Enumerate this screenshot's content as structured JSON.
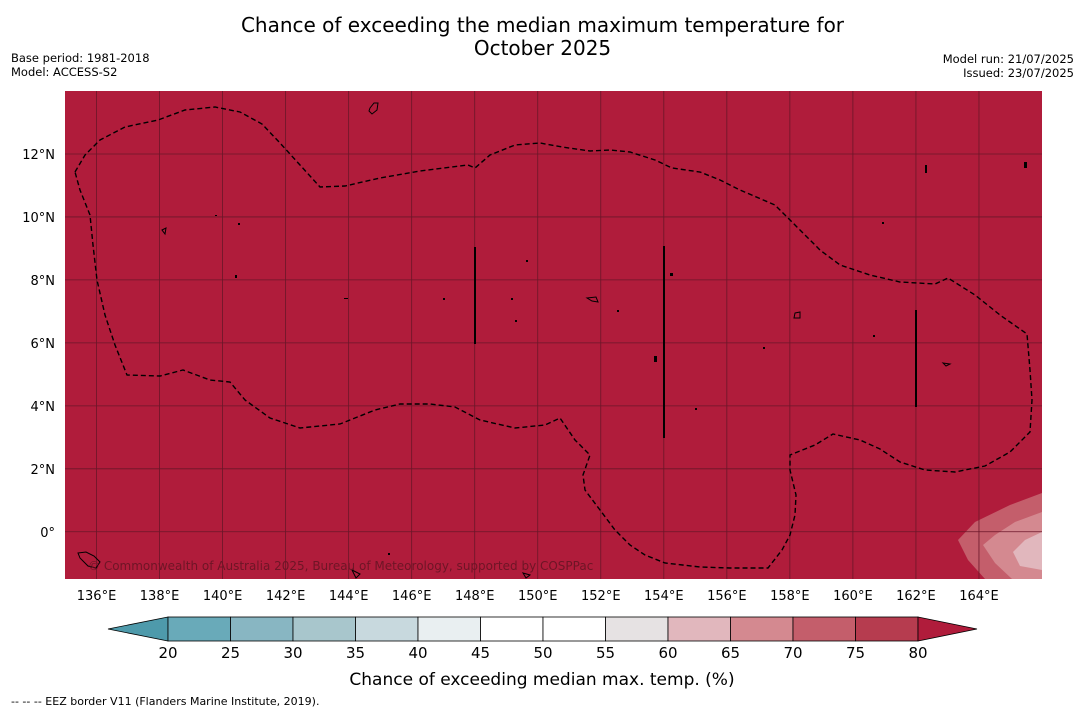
{
  "title_line1": "Chance of exceeding the median maximum temperature for",
  "title_line2": "October 2025",
  "meta_left": {
    "base_period": "Base period: 1981-2018",
    "model": "Model: ACCESS-S2"
  },
  "meta_right": {
    "model_run": "Model run: 21/07/2025",
    "issued": "Issued: 23/07/2025"
  },
  "map": {
    "lon_range": [
      135.0,
      166.0
    ],
    "lat_range": [
      -1.5,
      14.0
    ],
    "lon_ticks": [
      "136°E",
      "138°E",
      "140°E",
      "142°E",
      "144°E",
      "146°E",
      "148°E",
      "150°E",
      "152°E",
      "154°E",
      "156°E",
      "158°E",
      "160°E",
      "162°E",
      "164°E"
    ],
    "lat_ticks": [
      "12°N",
      "10°N",
      "8°N",
      "6°N",
      "4°N",
      "2°N",
      "0°"
    ],
    "dominant_category": "80",
    "copyright": "© Commonwealth of Australia 2025, Bureau of Meteorology, supported by COSPPac"
  },
  "colorbar": {
    "labels": [
      "20",
      "25",
      "30",
      "35",
      "40",
      "45",
      "50",
      "55",
      "60",
      "65",
      "70",
      "75",
      "80"
    ],
    "colors": [
      "#4e9aab",
      "#69aab9",
      "#88b6c2",
      "#a8c6cc",
      "#c8d9de",
      "#e9eff1",
      "#ffffff",
      "#ffffff",
      "#e6e2e3",
      "#e1b7bd",
      "#d48990",
      "#c45e6b",
      "#b63c4f",
      "#b01c3b"
    ],
    "title": "Chance of exceeding median max. temp. (%)"
  },
  "footnote": "--  --  -- EEZ border V11 (Flanders Marine Institute, 2019)."
}
